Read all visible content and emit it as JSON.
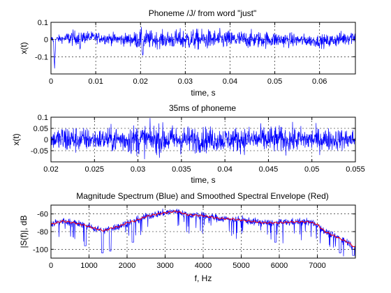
{
  "chart_data": [
    {
      "type": "line",
      "title": "Phoneme /J/ from word \"just\"",
      "xlabel": "time, s",
      "ylabel": "x(t)",
      "xlim": [
        0,
        0.068
      ],
      "ylim": [
        -0.2,
        0.1
      ],
      "x_ticks": [
        0,
        0.01,
        0.02,
        0.03,
        0.04,
        0.05,
        0.06
      ],
      "x_tick_labels": [
        "0",
        "0.01",
        "0.02",
        "0.03",
        "0.04",
        "0.05",
        "0.06"
      ],
      "y_ticks": [
        -0.1,
        0,
        0.1
      ],
      "y_tick_labels": [
        "-0.1",
        "0",
        "0.1"
      ],
      "grid": true,
      "series": [
        {
          "color": "#0000ff",
          "waveform": "noise-like speech signal",
          "envelope": [
            [
              0,
              0.03
            ],
            [
              0.003,
              0.03
            ],
            [
              0.004,
              0.06
            ],
            [
              0.01,
              0.04
            ],
            [
              0.018,
              0.05
            ],
            [
              0.02,
              0.08
            ],
            [
              0.024,
              0.06
            ],
            [
              0.03,
              0.08
            ],
            [
              0.04,
              0.07
            ],
            [
              0.05,
              0.06
            ],
            [
              0.058,
              0.045
            ],
            [
              0.068,
              0.06
            ]
          ],
          "baseline": [
            [
              0,
              0
            ],
            [
              0.008,
              0.015
            ],
            [
              0.016,
              0
            ],
            [
              0.05,
              0
            ],
            [
              0.062,
              -0.01
            ],
            [
              0.068,
              0.02
            ]
          ],
          "transients": [
            {
              "x": 0.0008,
              "y": -0.17
            },
            {
              "x": 0.0065,
              "y": -0.06
            },
            {
              "x": 0.0205,
              "y": -0.1
            }
          ]
        }
      ]
    },
    {
      "type": "line",
      "title": "35ms of phoneme",
      "xlabel": "time, s",
      "ylabel": "x(t)",
      "xlim": [
        0.02,
        0.055
      ],
      "ylim": [
        -0.1,
        0.1
      ],
      "x_ticks": [
        0.02,
        0.025,
        0.03,
        0.035,
        0.04,
        0.045,
        0.05,
        0.055
      ],
      "x_tick_labels": [
        "0.02",
        "0.025",
        "0.03",
        "0.035",
        "0.04",
        "0.045",
        "0.05",
        "0.055"
      ],
      "y_ticks": [
        -0.05,
        0,
        0.05,
        0.1
      ],
      "y_tick_labels": [
        "-0.05",
        "0",
        "0.05",
        "0.1"
      ],
      "grid": true,
      "series": [
        {
          "color": "#0000ff",
          "waveform": "noise-like speech signal",
          "envelope": [
            [
              0.02,
              0.05
            ],
            [
              0.0215,
              0.09
            ],
            [
              0.025,
              0.06
            ],
            [
              0.03,
              0.09
            ],
            [
              0.035,
              0.08
            ],
            [
              0.04,
              0.07
            ],
            [
              0.045,
              0.08
            ],
            [
              0.05,
              0.07
            ],
            [
              0.055,
              0.06
            ]
          ]
        }
      ]
    },
    {
      "type": "line",
      "title": "Magnitude Spectrum (Blue) and Smoothed Spectral Envelope (Red)",
      "xlabel": "f, Hz",
      "ylabel": "|S(f)|, dB",
      "xlim": [
        0,
        8000
      ],
      "ylim": [
        -110,
        -50
      ],
      "x_ticks": [
        0,
        1000,
        2000,
        3000,
        4000,
        5000,
        6000,
        7000
      ],
      "x_tick_labels": [
        "0",
        "1000",
        "2000",
        "3000",
        "4000",
        "5000",
        "6000",
        "7000"
      ],
      "y_ticks": [
        -100,
        -80,
        -60
      ],
      "y_tick_labels": [
        "-100",
        "-80",
        "-60"
      ],
      "grid": true,
      "series": [
        {
          "color": "#0000ff",
          "points_hz_db": [
            [
              0,
              -72
            ],
            [
              300,
              -68
            ],
            [
              600,
              -70
            ],
            [
              900,
              -73
            ],
            [
              1200,
              -77
            ],
            [
              1400,
              -79
            ],
            [
              1600,
              -76
            ],
            [
              1800,
              -74
            ],
            [
              2000,
              -70
            ],
            [
              2200,
              -68
            ],
            [
              2500,
              -63
            ],
            [
              2800,
              -60
            ],
            [
              3100,
              -58
            ],
            [
              3300,
              -57
            ],
            [
              3600,
              -61
            ],
            [
              4000,
              -62
            ],
            [
              4400,
              -65
            ],
            [
              4800,
              -66
            ],
            [
              5200,
              -68
            ],
            [
              5600,
              -70
            ],
            [
              6000,
              -70
            ],
            [
              6400,
              -69
            ],
            [
              6800,
              -69
            ],
            [
              7000,
              -72
            ],
            [
              7200,
              -80
            ],
            [
              7500,
              -86
            ],
            [
              7800,
              -92
            ],
            [
              7990,
              -98
            ]
          ],
          "variation_db": 7,
          "min_points": [
            [
              1350,
              -104
            ],
            [
              1560,
              -102
            ],
            [
              900,
              -96
            ],
            [
              2150,
              -92
            ],
            [
              7600,
              -104
            ],
            [
              7950,
              -107
            ],
            [
              5900,
              -92
            ]
          ]
        },
        {
          "color": "#ff0000",
          "points_hz_db": [
            [
              0,
              -72
            ],
            [
              300,
              -68
            ],
            [
              600,
              -70
            ],
            [
              900,
              -73
            ],
            [
              1200,
              -77
            ],
            [
              1400,
              -79
            ],
            [
              1600,
              -76
            ],
            [
              1800,
              -74
            ],
            [
              2000,
              -70
            ],
            [
              2200,
              -68
            ],
            [
              2500,
              -63
            ],
            [
              2800,
              -60
            ],
            [
              3100,
              -58
            ],
            [
              3300,
              -57
            ],
            [
              3600,
              -61
            ],
            [
              4000,
              -62
            ],
            [
              4400,
              -65
            ],
            [
              4800,
              -66
            ],
            [
              5200,
              -68
            ],
            [
              5600,
              -70
            ],
            [
              6000,
              -70
            ],
            [
              6400,
              -69
            ],
            [
              6800,
              -69
            ],
            [
              7000,
              -72
            ],
            [
              7200,
              -80
            ],
            [
              7500,
              -86
            ],
            [
              7800,
              -92
            ],
            [
              7990,
              -98
            ]
          ]
        }
      ]
    }
  ]
}
